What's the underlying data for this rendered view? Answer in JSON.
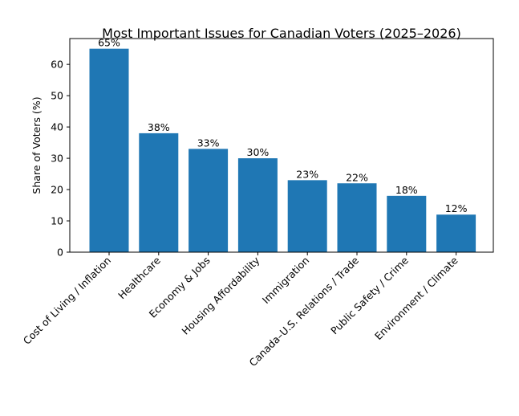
{
  "chart_data": {
    "type": "bar",
    "title": "Most Important Issues for Canadian Voters (2025–2026)",
    "xlabel": "",
    "ylabel": "Share of Voters (%)",
    "categories": [
      "Cost of Living / Inflation",
      "Healthcare",
      "Economy & Jobs",
      "Housing Affordability",
      "Immigration",
      "Canada–U.S. Relations / Trade",
      "Public Safety / Crime",
      "Environment / Climate"
    ],
    "values": [
      65,
      38,
      33,
      30,
      23,
      22,
      18,
      12
    ],
    "data_labels": [
      "65%",
      "38%",
      "33%",
      "30%",
      "23%",
      "22%",
      "18%",
      "12%"
    ],
    "ylim": [
      0,
      68.25
    ],
    "yticks": [
      0,
      10,
      20,
      30,
      40,
      50,
      60
    ],
    "bar_color": "#1f77b4",
    "grid": false
  }
}
